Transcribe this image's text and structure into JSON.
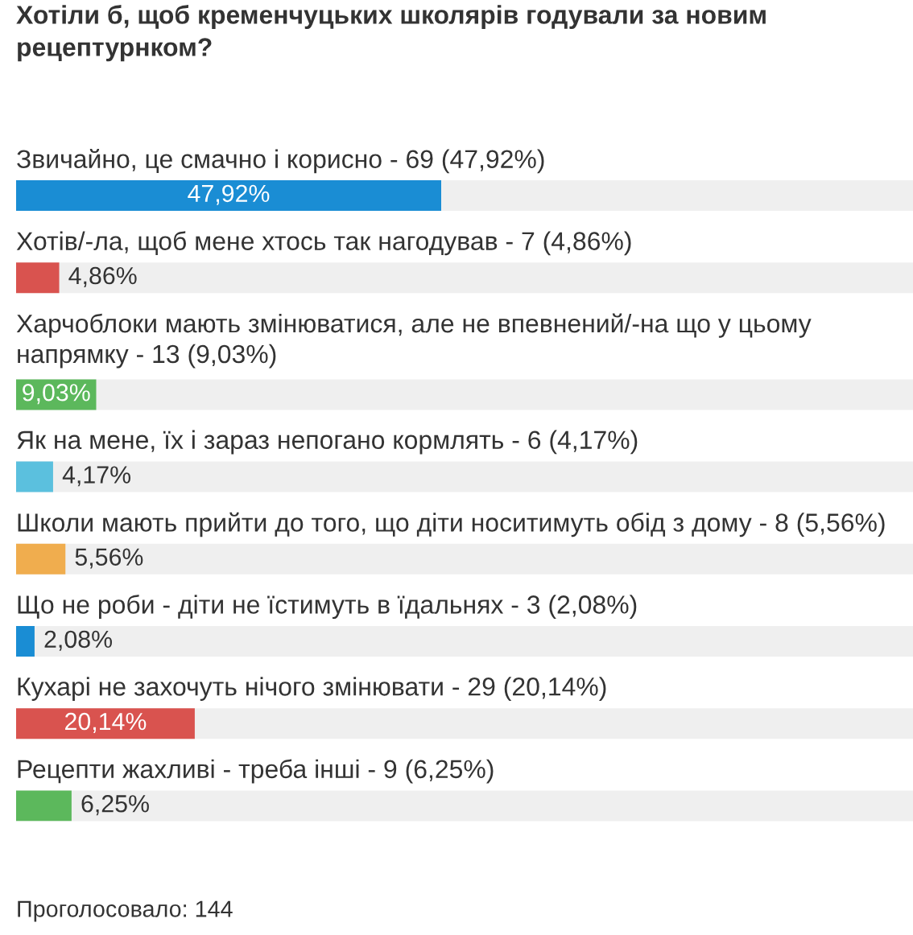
{
  "chart_data": {
    "type": "bar",
    "orientation": "horizontal",
    "title": "Хотіли б, щоб кременчуцьких школярів годували за новим рецептурнком?",
    "categories": [
      "Звичайно, це смачно і корисно - 69 (47,92%)",
      "Хотів/-ла, щоб мене хтось так нагодував - 7 (4,86%)",
      "Харчоблоки мають змінюватися, але не впевнений/-на що у цьому напрямку - 13 (9,03%)",
      "Як на мене, їх і зараз непогано кормлять - 6 (4,17%)",
      "Школи мають прийти до того, що діти носитимуть обід з дому - 8 (5,56%)",
      "Що не роби - діти не їстимуть в їдальнях - 3 (2,08%)",
      "Кухарі не захочуть нічого змінювати - 29 (20,14%)",
      "Рецепти жахливі - треба інші - 9 (6,25%)"
    ],
    "values": [
      47.92,
      4.86,
      9.03,
      4.17,
      5.56,
      2.08,
      20.14,
      6.25
    ],
    "value_labels": [
      "47,92%",
      "4,86%",
      "9,03%",
      "4,17%",
      "5,56%",
      "2,08%",
      "20,14%",
      "6,25%"
    ],
    "colors": [
      "#1a8dd4",
      "#d9534f",
      "#5cb85c",
      "#5bc0de",
      "#f0ad4e",
      "#1a8dd4",
      "#d9534f",
      "#5cb85c"
    ],
    "tick_labels": "y",
    "annotations": [
      "Проголосовало: 144"
    ]
  }
}
